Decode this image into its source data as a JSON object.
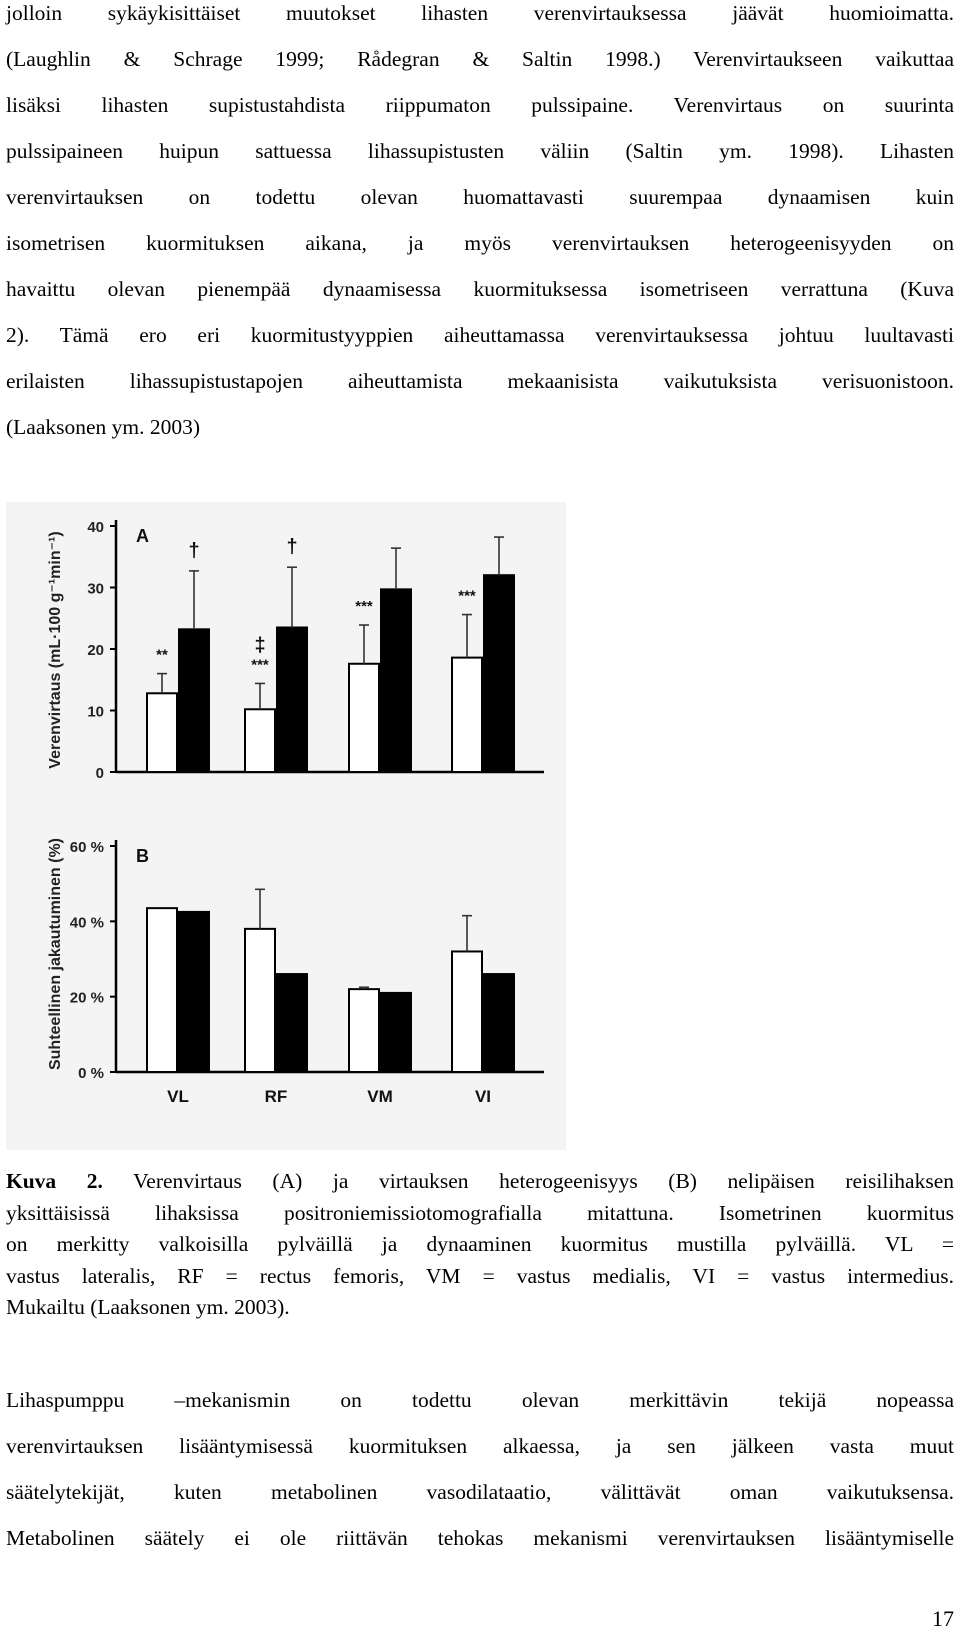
{
  "paragraph_top_lines": [
    "jolloin sykäykisittäiset muutokset lihasten verenvirtauksessa jäävät huomioimatta.",
    "(Laughlin & Schrage 1999; Rådegran & Saltin 1998.) Verenvirtaukseen vaikuttaa",
    "lisäksi lihasten supistustahdista riippumaton pulssipaine. Verenvirtaus on suurinta",
    "pulssipaineen huipun sattuessa lihassupistusten väliin (Saltin ym. 1998). Lihasten",
    "verenvirtauksen on todettu olevan huomattavasti suurempaa dynaamisen kuin",
    "isometrisen kuormituksen aikana, ja myös verenvirtauksen heterogeenisyyden on",
    "havaittu olevan pienempää dynaamisessa kuormituksessa isometriseen verrattuna (Kuva",
    "2). Tämä ero eri kuormitustyyppien aiheuttamassa verenvirtauksessa johtuu luultavasti",
    "erilaisten lihassupistustapojen aiheuttamista mekaanisista vaikutuksista verisuonistoon.",
    "(Laaksonen ym. 2003)"
  ],
  "figure": {
    "background": "#f4f4f4",
    "bar_colors": {
      "isometric": "#ffffff",
      "dynamic": "#000000"
    }
  },
  "caption": {
    "label": "Kuva 2.",
    "lines": [
      "Verenvirtaus (A) ja virtauksen heterogeenisyys (B) nelipäisen reisilihaksen",
      "yksittäisissä lihaksissa positroniemissiotomografialla mitattuna. Isometrinen kuormitus",
      "on merkitty valkoisilla pylväillä ja dynaaminen kuormitus mustilla pylväillä. VL =",
      "vastus lateralis, RF = rectus femoris, VM = vastus medialis, VI = vastus intermedius.",
      "Mukailtu (Laaksonen ym. 2003)."
    ]
  },
  "paragraph_bottom_lines": [
    "Lihaspumppu –mekanismin on todettu olevan merkittävin tekijä nopeassa",
    "verenvirtauksen lisääntymisessä kuormituksen alkaessa, ja sen jälkeen vasta muut",
    "säätelytekijät, kuten metabolinen vasodilataatio, välittävät oman vaikutuksensa.",
    "Metabolinen säätely ei ole riittävän tehokas mekanismi verenvirtauksen lisääntymiselle"
  ],
  "page_number": "17",
  "chart_data": [
    {
      "type": "bar",
      "panel_label": "A",
      "ylabel": "Verenvirtaus (mL·100 g⁻¹min⁻¹)",
      "ylim": [
        0,
        40
      ],
      "yticks": [
        "0",
        "10",
        "20",
        "30",
        "40"
      ],
      "categories": [
        "VL",
        "RF",
        "VM",
        "VI"
      ],
      "series": [
        {
          "values": [
            12.8,
            10.2,
            17.6,
            18.6
          ],
          "errors": [
            3.2,
            4.2,
            6.3,
            7.0
          ]
        },
        {
          "values": [
            23.2,
            23.5,
            29.7,
            32.0
          ],
          "errors": [
            9.5,
            9.8,
            6.7,
            6.2
          ]
        }
      ],
      "annotations": [
        {
          "category": "VL",
          "series": 0,
          "text": "**"
        },
        {
          "category": "VL",
          "series": 1,
          "text": "†"
        },
        {
          "category": "RF",
          "series": 0,
          "text": "‡\n***"
        },
        {
          "category": "RF",
          "series": 1,
          "text": "†"
        },
        {
          "category": "VM",
          "series": 0,
          "text": "***"
        },
        {
          "category": "VI",
          "series": 0,
          "text": "***"
        }
      ]
    },
    {
      "type": "bar",
      "panel_label": "B",
      "ylabel": "Suhteellinen jakautuminen (%)",
      "ylim": [
        0,
        60
      ],
      "yticks": [
        "0 %",
        "20 %",
        "40 %",
        "60 %"
      ],
      "categories": [
        "VL",
        "RF",
        "VM",
        "VI"
      ],
      "series": [
        {
          "values": [
            43.5,
            38.0,
            22.0,
            32.0
          ],
          "errors": [
            0,
            10.5,
            0.5,
            9.5
          ]
        },
        {
          "values": [
            42.5,
            26.0,
            21.0,
            26.0
          ],
          "errors": [
            0,
            0,
            0,
            0
          ]
        }
      ],
      "annotations": []
    }
  ]
}
